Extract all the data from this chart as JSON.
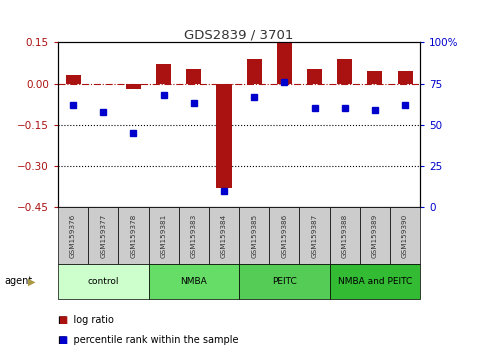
{
  "title": "GDS2839 / 3701",
  "samples": [
    "GSM159376",
    "GSM159377",
    "GSM159378",
    "GSM159381",
    "GSM159383",
    "GSM159384",
    "GSM159385",
    "GSM159386",
    "GSM159387",
    "GSM159388",
    "GSM159389",
    "GSM159390"
  ],
  "log_ratio": [
    0.03,
    0.0,
    -0.02,
    0.07,
    0.055,
    -0.38,
    0.09,
    0.148,
    0.055,
    0.09,
    0.045,
    0.045
  ],
  "percentile_rank": [
    62,
    58,
    45,
    68,
    63,
    10,
    67,
    76,
    60,
    60,
    59,
    62
  ],
  "groups": [
    {
      "label": "control",
      "start": 0,
      "end": 2,
      "color": "#ccffcc"
    },
    {
      "label": "NMBA",
      "start": 3,
      "end": 5,
      "color": "#66dd66"
    },
    {
      "label": "PEITC",
      "start": 6,
      "end": 8,
      "color": "#55cc55"
    },
    {
      "label": "NMBA and PEITC",
      "start": 9,
      "end": 11,
      "color": "#33bb33"
    }
  ],
  "ylim_left": [
    -0.45,
    0.15
  ],
  "ylim_right": [
    0,
    100
  ],
  "yticks_left": [
    0.15,
    0.0,
    -0.15,
    -0.3,
    -0.45
  ],
  "yticks_right": [
    100,
    75,
    50,
    25,
    0
  ],
  "hlines_dotted": [
    -0.15,
    -0.3
  ],
  "hline_dashdot": 0.0,
  "bar_color": "#aa1111",
  "dot_color": "#0000cc",
  "bg_color": "#ffffff",
  "legend_bar_label": "log ratio",
  "legend_dot_label": "percentile rank within the sample",
  "agent_label": "agent",
  "title_color": "#333333",
  "sample_box_color": "#cccccc",
  "right_axis_color": "#0000cc",
  "left_axis_color": "#aa1111"
}
